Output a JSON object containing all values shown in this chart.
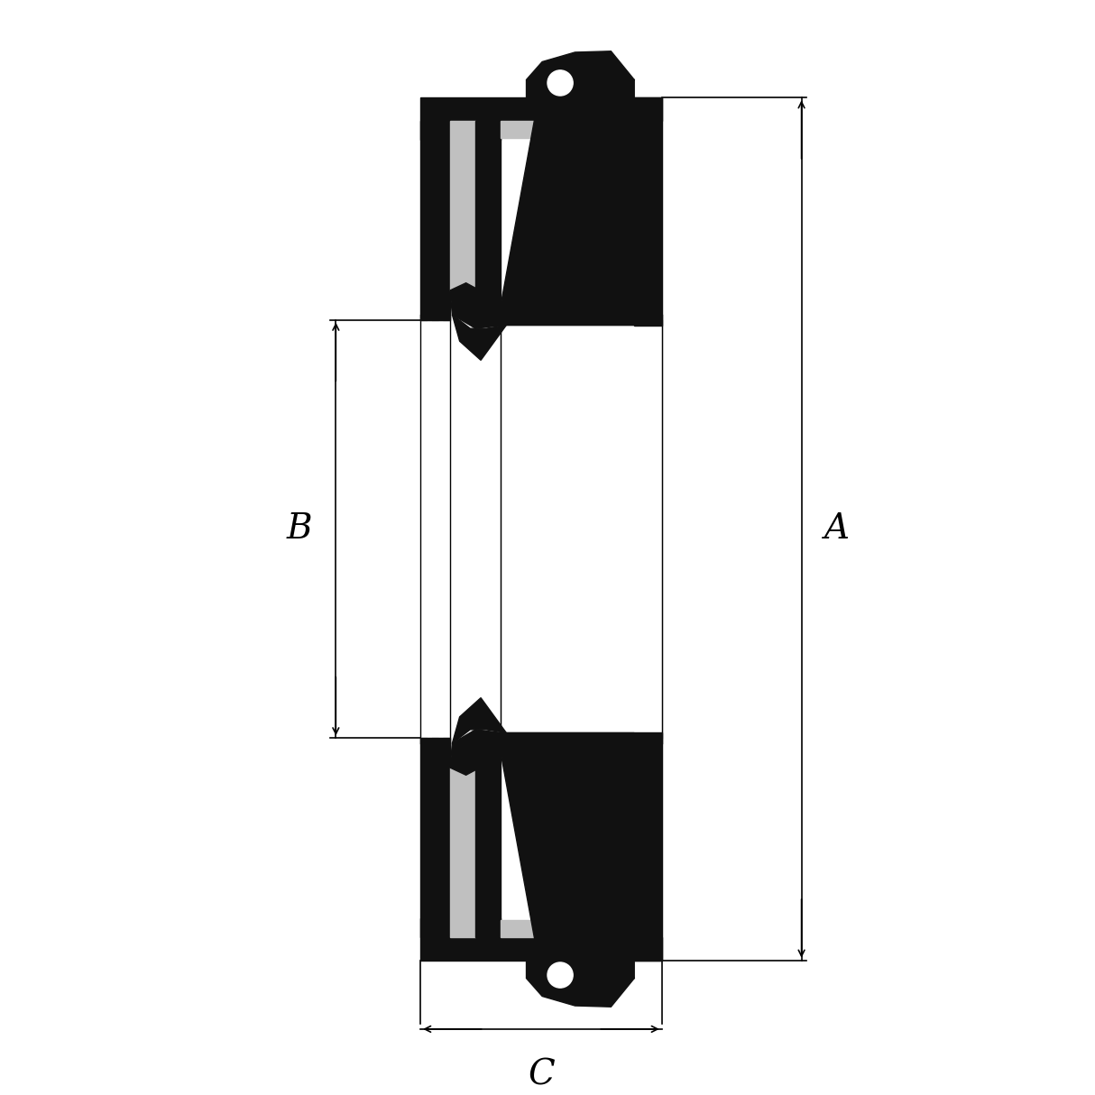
{
  "background_color": "#ffffff",
  "line_color": "#000000",
  "fill_black": "#111111",
  "fill_gray": "#c0c0c0",
  "fill_white": "#ffffff",
  "label_A": "A",
  "label_B": "B",
  "label_C": "C",
  "figsize": [
    12.14,
    12.14
  ],
  "dpi": 100,
  "xlim": [
    0,
    10
  ],
  "ylim": [
    0,
    10
  ]
}
